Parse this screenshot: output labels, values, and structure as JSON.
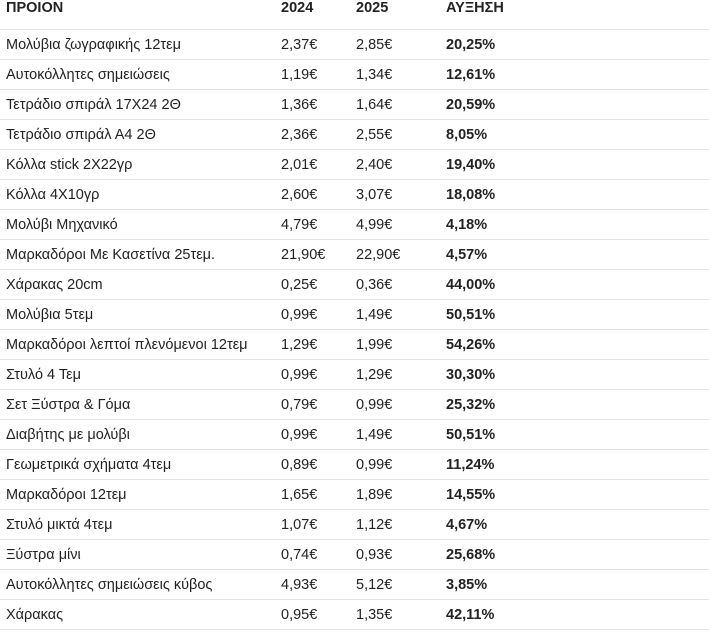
{
  "header": {
    "product": "ΠΡΟΙΟΝ",
    "year1": "2024",
    "year2": "2025",
    "increase": "ΑΥΞΗΣΗ"
  },
  "rows": [
    {
      "name": "Μολύβια ζωγραφικής 12τεμ",
      "p2024": "2,37€",
      "p2025": "2,85€",
      "increase": "20,25%"
    },
    {
      "name": "Αυτοκόλλητες σημειώσεις",
      "p2024": "1,19€",
      "p2025": "1,34€",
      "increase": "12,61%"
    },
    {
      "name": "Τετράδιο σπιράλ 17Χ24 2Θ",
      "p2024": "1,36€",
      "p2025": "1,64€",
      "increase": "20,59%"
    },
    {
      "name": "Τετράδιο σπιράλ Α4 2Θ",
      "p2024": "2,36€",
      "p2025": "2,55€",
      "increase": "8,05%"
    },
    {
      "name": "Κόλλα stick 2X22γρ",
      "p2024": "2,01€",
      "p2025": "2,40€",
      "increase": "19,40%"
    },
    {
      "name": "Κόλλα 4Χ10γρ",
      "p2024": "2,60€",
      "p2025": "3,07€",
      "increase": "18,08%"
    },
    {
      "name": "Μολύβι Μηχανικό",
      "p2024": "4,79€",
      "p2025": "4,99€",
      "increase": "4,18%"
    },
    {
      "name": "Μαρκαδόροι Με Κασετίνα 25τεμ.",
      "p2024": "21,90€",
      "p2025": "22,90€",
      "increase": "4,57%"
    },
    {
      "name": "Χάρακας 20cm",
      "p2024": "0,25€",
      "p2025": "0,36€",
      "increase": "44,00%"
    },
    {
      "name": "Μολύβια 5τεμ",
      "p2024": "0,99€",
      "p2025": "1,49€",
      "increase": "50,51%"
    },
    {
      "name": "Μαρκαδόροι λεπτοί πλενόμενοι 12τεμ",
      "p2024": "1,29€",
      "p2025": "1,99€",
      "increase": "54,26%"
    },
    {
      "name": "Στυλό 4 Τεμ",
      "p2024": "0,99€",
      "p2025": "1,29€",
      "increase": "30,30%"
    },
    {
      "name": "Σετ Ξύστρα & Γόμα",
      "p2024": "0,79€",
      "p2025": "0,99€",
      "increase": "25,32%"
    },
    {
      "name": "Διαβήτης με μολύβι",
      "p2024": "0,99€",
      "p2025": "1,49€",
      "increase": "50,51%"
    },
    {
      "name": "Γεωμετρικά σχήματα  4τεμ",
      "p2024": "0,89€",
      "p2025": "0,99€",
      "increase": "11,24%"
    },
    {
      "name": "Μαρκαδόροι 12τεμ",
      "p2024": "1,65€",
      "p2025": "1,89€",
      "increase": "14,55%"
    },
    {
      "name": "Στυλό μικτά 4τεμ",
      "p2024": "1,07€",
      "p2025": "1,12€",
      "increase": "4,67%"
    },
    {
      "name": "Ξύστρα μίνι",
      "p2024": "0,74€",
      "p2025": "0,93€",
      "increase": "25,68%"
    },
    {
      "name": "Αυτοκόλλητες σημειώσεις κύβος",
      "p2024": "4,93€",
      "p2025": "5,12€",
      "increase": "3,85%"
    },
    {
      "name": "Χάρακας",
      "p2024": "0,95€",
      "p2025": "1,35€",
      "increase": "42,11%"
    }
  ]
}
